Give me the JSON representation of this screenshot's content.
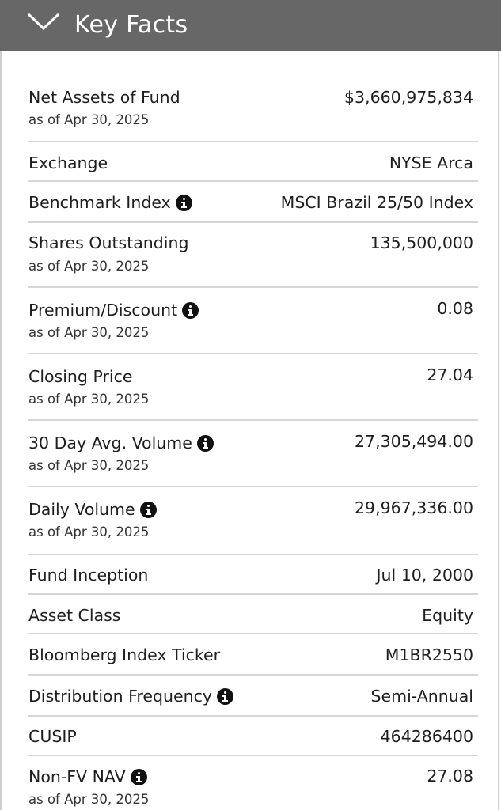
{
  "header": {
    "title": "Key Facts",
    "toggle_icon": "chevron-down-icon",
    "background": "#676767"
  },
  "facts": [
    {
      "label": "Net Assets of Fund",
      "sub": "as of Apr 30, 2025",
      "value": "$3,660,975,834",
      "info": false
    },
    {
      "label": "Exchange",
      "sub": "",
      "value": "NYSE Arca",
      "info": false
    },
    {
      "label": "Benchmark Index",
      "sub": "",
      "value": "MSCI Brazil 25/50 Index",
      "info": true
    },
    {
      "label": "Shares Outstanding",
      "sub": "as of Apr 30, 2025",
      "value": "135,500,000",
      "info": false
    },
    {
      "label": "Premium/Discount",
      "sub": "as of Apr 30, 2025",
      "value": "0.08",
      "info": true
    },
    {
      "label": "Closing Price",
      "sub": "as of Apr 30, 2025",
      "value": "27.04",
      "info": false
    },
    {
      "label": "30 Day Avg. Volume",
      "sub": "as of Apr 30, 2025",
      "value": "27,305,494.00",
      "info": true
    },
    {
      "label": "Daily Volume",
      "sub": "as of Apr 30, 2025",
      "value": "29,967,336.00",
      "info": true
    },
    {
      "label": "Fund Inception",
      "sub": "",
      "value": "Jul 10, 2000",
      "info": false
    },
    {
      "label": "Asset Class",
      "sub": "",
      "value": "Equity",
      "info": false
    },
    {
      "label": "Bloomberg Index Ticker",
      "sub": "",
      "value": "M1BR2550",
      "info": false
    },
    {
      "label": "Distribution Frequency",
      "sub": "",
      "value": "Semi-Annual",
      "info": true
    },
    {
      "label": "CUSIP",
      "sub": "",
      "value": "464286400",
      "info": false
    },
    {
      "label": "Non-FV NAV",
      "sub": "as of Apr 30, 2025",
      "value": "27.08",
      "info": true
    }
  ]
}
